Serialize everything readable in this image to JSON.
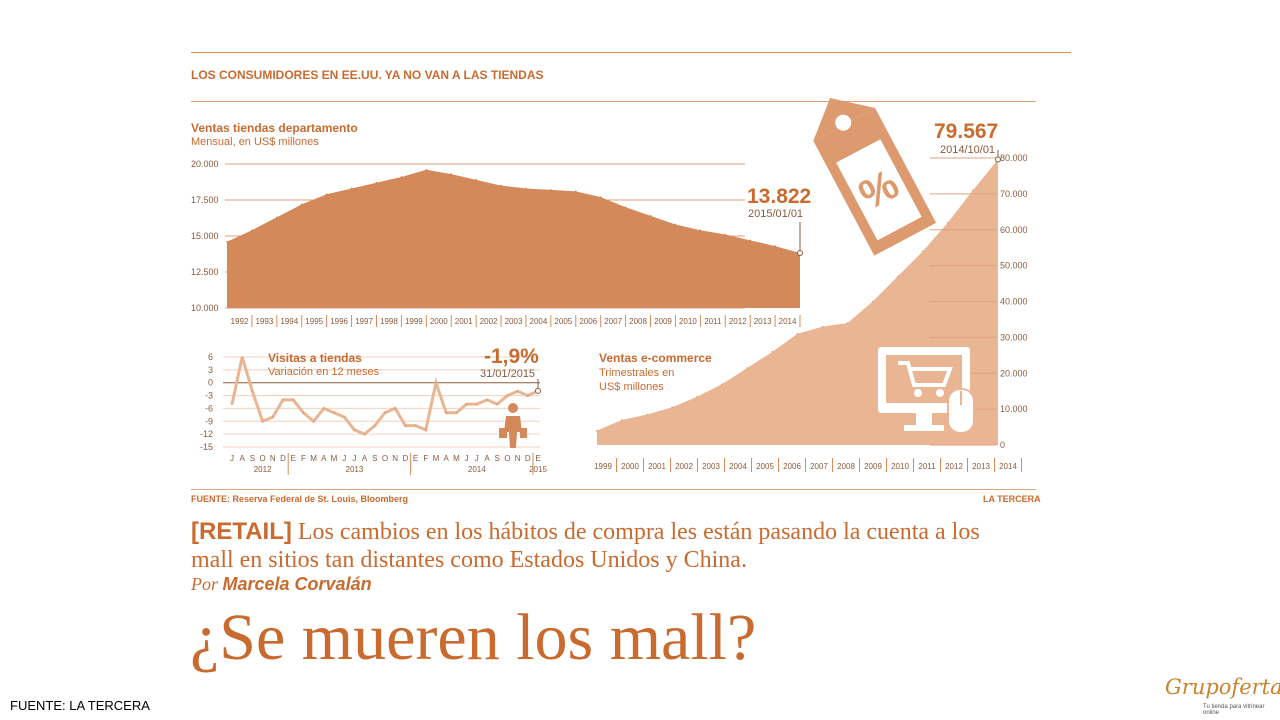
{
  "infographic": {
    "title": "LOS CONSUMIDORES EN EE.UU. YA NO VAN A LAS TIENDAS",
    "source": "FUENTE: Reserva Federal de St. Louis, Bloomberg",
    "publisher": "LA TERCERA"
  },
  "article": {
    "tag": "[RETAIL]",
    "lede": "Los cambios en los hábitos de compra les están pasando la cuenta a los mall en sitios tan distantes como Estados Unidos y China.",
    "byline_prefix": "Por",
    "author": "Marcela Corvalán",
    "headline": "¿Se mueren los mall?"
  },
  "slide": {
    "footer": "FUENTE: LA TERCERA",
    "logo": "Grupofertas",
    "logo_tagline": "Tu tienda para vitrinear online"
  },
  "colors": {
    "accent": "#c96a2f",
    "fill_dark": "#d4895a",
    "fill_light": "#e9b593",
    "icon": "#dd9a6e"
  },
  "icons": [
    "price-tag-percent-icon",
    "computer-cart-icon",
    "shopper-figure-icon"
  ],
  "chart_data": [
    {
      "type": "area",
      "title": "Ventas tiendas departamento",
      "subtitle": "Mensual, en US$ millones",
      "ylim": [
        10000,
        20000
      ],
      "yticks": [
        "20.000",
        "17.500",
        "15.000",
        "12.500",
        "10.000"
      ],
      "x": [
        1992,
        1993,
        1994,
        1995,
        1996,
        1997,
        1998,
        1999,
        2000,
        2001,
        2002,
        2003,
        2004,
        2005,
        2006,
        2007,
        2008,
        2009,
        2010,
        2011,
        2012,
        2013,
        2014,
        2015
      ],
      "values": [
        14600,
        15400,
        16300,
        17200,
        17900,
        18300,
        18700,
        19100,
        19600,
        19300,
        18900,
        18500,
        18300,
        18200,
        18100,
        17700,
        17000,
        16400,
        15800,
        15400,
        15100,
        14700,
        14300,
        13822
      ],
      "xtick_labels": [
        "1992",
        "1993",
        "1994",
        "1995",
        "1996",
        "1997",
        "1998",
        "1999",
        "2000",
        "2001",
        "2002",
        "2003",
        "2004",
        "2005",
        "2006",
        "2007",
        "2008",
        "2009",
        "2010",
        "2011",
        "2012",
        "2013",
        "2014"
      ],
      "annotation": {
        "value": "13.822",
        "date": "2015/01/01"
      }
    },
    {
      "type": "line",
      "title": "Visitas a tiendas",
      "subtitle": "Variación en 12 meses",
      "ylim": [
        -15,
        6
      ],
      "yticks": [
        "6",
        "3",
        "0",
        "-3",
        "-6",
        "-9",
        "-12",
        "-15"
      ],
      "x_months": [
        "J",
        "A",
        "S",
        "O",
        "N",
        "D",
        "E",
        "F",
        "M",
        "A",
        "M",
        "J",
        "J",
        "A",
        "S",
        "O",
        "N",
        "D",
        "E",
        "F",
        "M",
        "A",
        "M",
        "J",
        "J",
        "A",
        "S",
        "O",
        "N",
        "D",
        "E"
      ],
      "year_labels": [
        "2012",
        "2013",
        "2014",
        "2015"
      ],
      "values": [
        -5,
        6,
        -2,
        -9,
        -8,
        -4,
        -4,
        -7,
        -9,
        -6,
        -7,
        -8,
        -11,
        -12,
        -10,
        -7,
        -6,
        -10,
        -10,
        -11,
        0,
        -7,
        -7,
        -5,
        -5,
        -4,
        -5,
        -3,
        -2,
        -3,
        -1.9
      ],
      "annotation": {
        "value": "-1,9%",
        "date": "31/01/2015"
      }
    },
    {
      "type": "area",
      "title": "Ventas e-commerce",
      "subtitle": "Trimestrales en US$ millones",
      "ylim": [
        0,
        80000
      ],
      "yticks": [
        "80.000",
        "70.000",
        "60.000",
        "50.000",
        "40.000",
        "30.000",
        "20.000",
        "10.000",
        "0"
      ],
      "x": [
        1999,
        2000,
        2001,
        2002,
        2003,
        2004,
        2005,
        2006,
        2007,
        2008,
        2009,
        2010,
        2011,
        2012,
        2013,
        2014,
        2015
      ],
      "values": [
        4000,
        7000,
        8500,
        10500,
        13500,
        17000,
        21500,
        26000,
        31000,
        33000,
        34000,
        40000,
        47000,
        54000,
        62000,
        71000,
        79567
      ],
      "xtick_labels": [
        "1999",
        "2000",
        "2001",
        "2002",
        "2003",
        "2004",
        "2005",
        "2006",
        "2007",
        "2008",
        "2009",
        "2010",
        "2011",
        "2012",
        "2013",
        "2014"
      ],
      "annotation": {
        "value": "79.567",
        "date": "2014/10/01"
      }
    }
  ]
}
